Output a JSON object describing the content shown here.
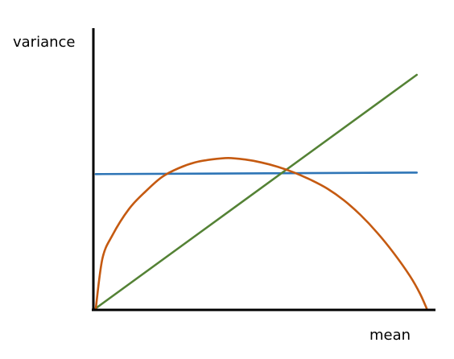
{
  "chart_data": {
    "type": "line",
    "title": "",
    "xlabel": "mean",
    "ylabel": "variance",
    "xlim": [
      0,
      1
    ],
    "ylim": [
      0,
      1
    ],
    "grid": false,
    "legend": "none",
    "series": [
      {
        "color": "#2e75b6",
        "points": [
          [
            0,
            0.46
          ],
          [
            0.97,
            0.465
          ]
        ]
      },
      {
        "color": "#548235",
        "points": [
          [
            0,
            0
          ],
          [
            0.97,
            0.8
          ]
        ]
      },
      {
        "color": "#c55a11",
        "points": [
          [
            0,
            0
          ],
          [
            0.02,
            0.17
          ],
          [
            0.05,
            0.25
          ],
          [
            0.1,
            0.34
          ],
          [
            0.15,
            0.4
          ],
          [
            0.2,
            0.45
          ],
          [
            0.25,
            0.48
          ],
          [
            0.3,
            0.5
          ],
          [
            0.35,
            0.51
          ],
          [
            0.4,
            0.515
          ],
          [
            0.45,
            0.51
          ],
          [
            0.5,
            0.5
          ],
          [
            0.55,
            0.485
          ],
          [
            0.6,
            0.465
          ],
          [
            0.65,
            0.44
          ],
          [
            0.7,
            0.41
          ],
          [
            0.75,
            0.37
          ],
          [
            0.8,
            0.32
          ],
          [
            0.85,
            0.26
          ],
          [
            0.9,
            0.19
          ],
          [
            0.95,
            0.11
          ],
          [
            0.98,
            0.05
          ],
          [
            1.0,
            0
          ]
        ]
      }
    ]
  }
}
